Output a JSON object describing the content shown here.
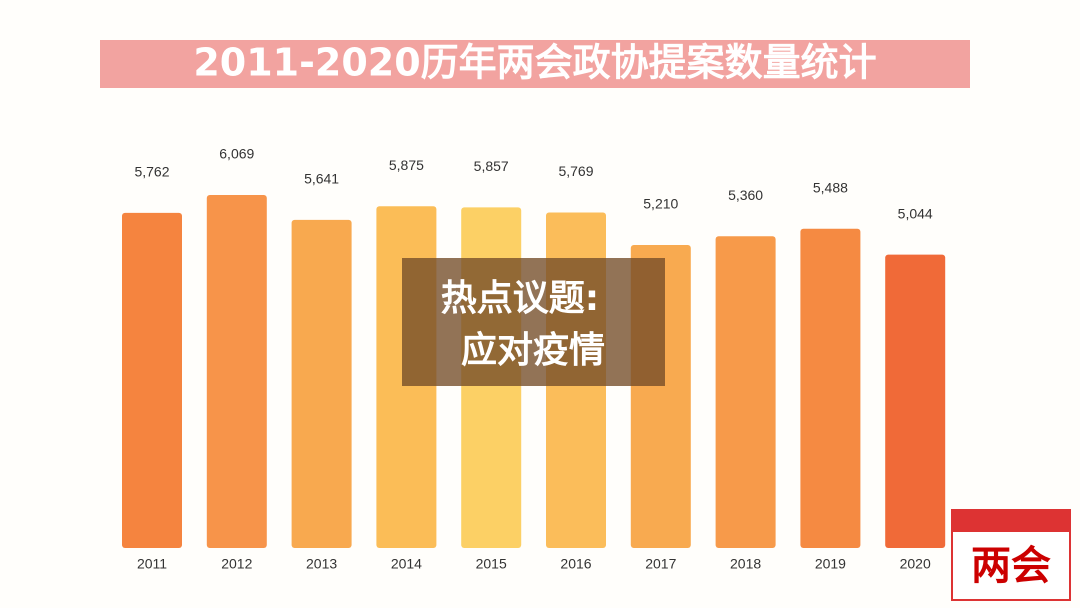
{
  "chart_data": {
    "type": "bar",
    "title": "2011-2020历年两会政协提案数量统计",
    "categories": [
      "2011",
      "2012",
      "2013",
      "2014",
      "2015",
      "2016",
      "2017",
      "2018",
      "2019",
      "2020"
    ],
    "values": [
      5762,
      6069,
      5641,
      5875,
      5857,
      5769,
      5210,
      5360,
      5488,
      5044
    ],
    "value_labels": [
      "5,762",
      "6,069",
      "5,641",
      "5,875",
      "5,857",
      "5,769",
      "5,210",
      "5,360",
      "5,488",
      "5,044"
    ],
    "colors": [
      "#f5843f",
      "#f7944a",
      "#f8a94f",
      "#fbbd57",
      "#fcd065",
      "#fbbd5a",
      "#f8aa50",
      "#f79a4a",
      "#f58a42",
      "#f06a38"
    ],
    "annotation": [
      "热点议题:",
      "应对疫情"
    ],
    "watermark": "两会"
  }
}
